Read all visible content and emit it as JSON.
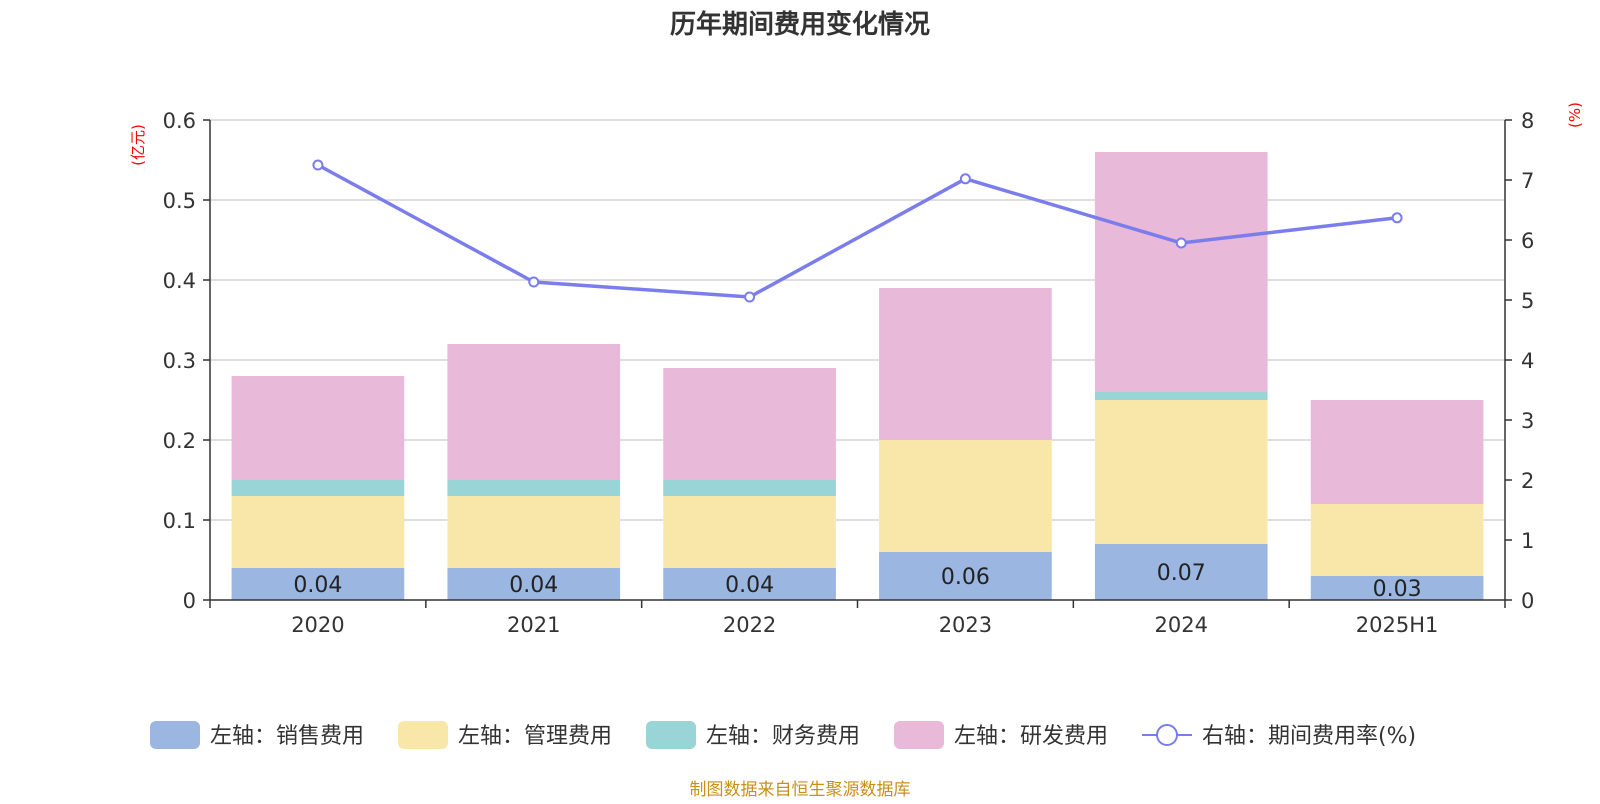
{
  "chart_data": {
    "type": "bar",
    "title": "历年期间费用变化情况",
    "categories": [
      "2020",
      "2021",
      "2022",
      "2023",
      "2024",
      "2025H1"
    ],
    "left_axis": {
      "unit": "(亿元)",
      "ylim": [
        0,
        0.6
      ],
      "ticks": [
        "0",
        "0.1",
        "0.2",
        "0.3",
        "0.4",
        "0.5",
        "0.6"
      ]
    },
    "right_axis": {
      "unit": "(%)",
      "ylim": [
        0,
        8
      ],
      "ticks": [
        "0",
        "1",
        "2",
        "3",
        "4",
        "5",
        "6",
        "7",
        "8"
      ]
    },
    "series": [
      {
        "name": "左轴：销售费用",
        "kind": "bar",
        "axis": "left",
        "color": "#9bb7e1",
        "values": [
          0.04,
          0.04,
          0.04,
          0.06,
          0.07,
          0.03
        ],
        "labels": [
          "0.04",
          "0.04",
          "0.04",
          "0.06",
          "0.07",
          "0.03"
        ]
      },
      {
        "name": "左轴：管理费用",
        "kind": "bar",
        "axis": "left",
        "color": "#f8e7a8",
        "values": [
          0.09,
          0.09,
          0.09,
          0.14,
          0.18,
          0.09
        ]
      },
      {
        "name": "左轴：财务费用",
        "kind": "bar",
        "axis": "left",
        "color": "#99d5d6",
        "values": [
          0.02,
          0.02,
          0.02,
          0.0,
          0.01,
          0.0
        ]
      },
      {
        "name": "左轴：研发费用",
        "kind": "bar",
        "axis": "left",
        "color": "#e8b9d8",
        "values": [
          0.13,
          0.17,
          0.14,
          0.19,
          0.3,
          0.13
        ]
      },
      {
        "name": "右轴：期间费用率(%)",
        "kind": "line",
        "axis": "right",
        "color": "#7b7ded",
        "values": [
          7.25,
          5.3,
          5.05,
          7.02,
          5.95,
          6.37
        ]
      }
    ],
    "grid": true,
    "legend_position": "bottom",
    "source": "制图数据来自恒生聚源数据库"
  }
}
